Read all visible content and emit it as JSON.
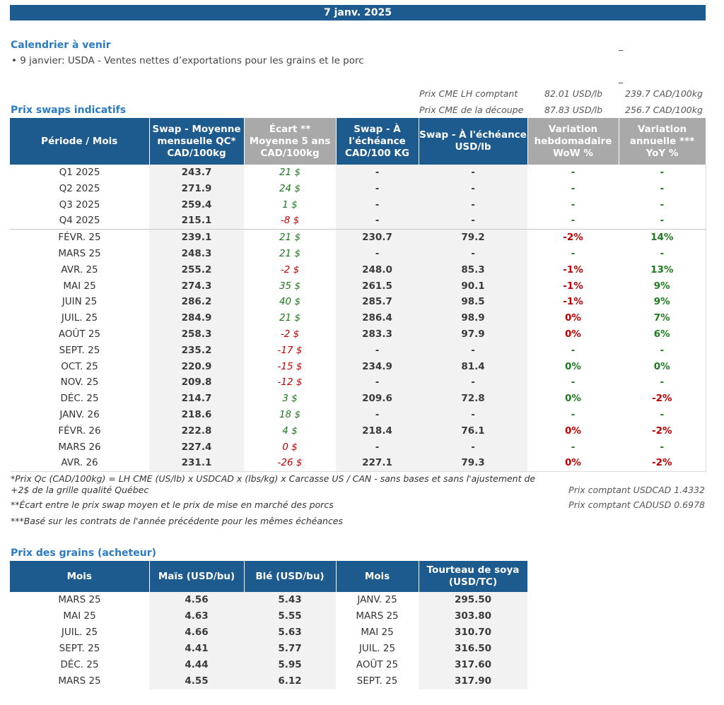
{
  "date": "7 janv. 2025",
  "calendar": {
    "title": "Calendrier à venir",
    "items": [
      "• 9 janvier: USDA - Ventes nettes d’exportations pour les grains et le porc"
    ]
  },
  "cme": {
    "rows": [
      {
        "label": "Prix CME LH comptant",
        "usd": "82.01 USD/lb",
        "cad": "239.7 CAD/100kg"
      },
      {
        "label": "Prix CME de la découpe",
        "usd": "87.83 USD/lb",
        "cad": "256.7 CAD/100kg"
      }
    ]
  },
  "swaps": {
    "title": "Prix swaps indicatifs",
    "headers": [
      "Période / Mois",
      "Swap - Moyenne mensuelle QC* CAD/100kg",
      "Écart ** Moyenne 5 ans CAD/100kg",
      "Swap - À l'échéance CAD/100 KG",
      "Swap - À l'échéance USD/lb",
      "Variation hebdomadaire WoW %",
      "Variation annuelle *** YoY %"
    ],
    "quarters": [
      {
        "period": "Q1 2025",
        "swap": "243.7",
        "ecart": "21 $",
        "ecart_sign": "pos",
        "cad": "-",
        "usd": "-",
        "wow": "-",
        "yoy": "-"
      },
      {
        "period": "Q2 2025",
        "swap": "271.9",
        "ecart": "24 $",
        "ecart_sign": "pos",
        "cad": "-",
        "usd": "-",
        "wow": "-",
        "yoy": "-"
      },
      {
        "period": "Q3 2025",
        "swap": "259.4",
        "ecart": "1 $",
        "ecart_sign": "pos",
        "cad": "-",
        "usd": "-",
        "wow": "-",
        "yoy": "-"
      },
      {
        "period": "Q4 2025",
        "swap": "215.1",
        "ecart": "-8 $",
        "ecart_sign": "neg",
        "cad": "-",
        "usd": "-",
        "wow": "-",
        "yoy": "-"
      }
    ],
    "months": [
      {
        "period": "FÉVR. 25",
        "swap": "239.1",
        "ecart": "21 $",
        "ecart_sign": "pos",
        "cad": "230.7",
        "usd": "79.2",
        "wow": "-2%",
        "wow_sign": "neg",
        "yoy": "14%",
        "yoy_sign": "pos"
      },
      {
        "period": "MARS 25",
        "swap": "248.3",
        "ecart": "21 $",
        "ecart_sign": "pos",
        "cad": "-",
        "usd": "-",
        "wow": "-",
        "wow_sign": "dash",
        "yoy": "-",
        "yoy_sign": "dash"
      },
      {
        "period": "AVR. 25",
        "swap": "255.2",
        "ecart": "-2 $",
        "ecart_sign": "neg",
        "cad": "248.0",
        "usd": "85.3",
        "wow": "-1%",
        "wow_sign": "neg",
        "yoy": "13%",
        "yoy_sign": "pos"
      },
      {
        "period": "MAI 25",
        "swap": "274.3",
        "ecart": "35 $",
        "ecart_sign": "pos",
        "cad": "261.5",
        "usd": "90.1",
        "wow": "-1%",
        "wow_sign": "neg",
        "yoy": "9%",
        "yoy_sign": "pos"
      },
      {
        "period": "JUIN 25",
        "swap": "286.2",
        "ecart": "40 $",
        "ecart_sign": "pos",
        "cad": "285.7",
        "usd": "98.5",
        "wow": "-1%",
        "wow_sign": "neg",
        "yoy": "9%",
        "yoy_sign": "pos"
      },
      {
        "period": "JUIL. 25",
        "swap": "284.9",
        "ecart": "21 $",
        "ecart_sign": "pos",
        "cad": "286.4",
        "usd": "98.9",
        "wow": "0%",
        "wow_sign": "neg",
        "yoy": "7%",
        "yoy_sign": "pos"
      },
      {
        "period": "AOÛT 25",
        "swap": "258.3",
        "ecart": "-2 $",
        "ecart_sign": "neg",
        "cad": "283.3",
        "usd": "97.9",
        "wow": "0%",
        "wow_sign": "neg",
        "yoy": "6%",
        "yoy_sign": "pos"
      },
      {
        "period": "SEPT. 25",
        "swap": "235.2",
        "ecart": "-17 $",
        "ecart_sign": "neg",
        "cad": "-",
        "usd": "-",
        "wow": "-",
        "wow_sign": "dash",
        "yoy": "-",
        "yoy_sign": "dash"
      },
      {
        "period": "OCT. 25",
        "swap": "220.9",
        "ecart": "-15 $",
        "ecart_sign": "neg",
        "cad": "234.9",
        "usd": "81.4",
        "wow": "0%",
        "wow_sign": "pos",
        "yoy": "0%",
        "yoy_sign": "pos"
      },
      {
        "period": "NOV. 25",
        "swap": "209.8",
        "ecart": "-12 $",
        "ecart_sign": "neg",
        "cad": "-",
        "usd": "-",
        "wow": "-",
        "wow_sign": "dash",
        "yoy": "-",
        "yoy_sign": "dash"
      },
      {
        "period": "DÉC. 25",
        "swap": "214.7",
        "ecart": "3 $",
        "ecart_sign": "pos",
        "cad": "209.6",
        "usd": "72.8",
        "wow": "0%",
        "wow_sign": "pos",
        "yoy": "-2%",
        "yoy_sign": "neg"
      },
      {
        "period": "JANV. 26",
        "swap": "218.6",
        "ecart": "18 $",
        "ecart_sign": "pos",
        "cad": "-",
        "usd": "-",
        "wow": "-",
        "wow_sign": "dash",
        "yoy": "-",
        "yoy_sign": "dash"
      },
      {
        "period": "FÉVR. 26",
        "swap": "222.8",
        "ecart": "4 $",
        "ecart_sign": "pos",
        "cad": "218.4",
        "usd": "76.1",
        "wow": "0%",
        "wow_sign": "neg",
        "yoy": "-2%",
        "yoy_sign": "neg"
      },
      {
        "period": "MARS 26",
        "swap": "227.4",
        "ecart": "0 $",
        "ecart_sign": "neg",
        "cad": "-",
        "usd": "-",
        "wow": "-",
        "wow_sign": "dash",
        "yoy": "-",
        "yoy_sign": "dash"
      },
      {
        "period": "AVR. 26",
        "swap": "231.1",
        "ecart": "-26 $",
        "ecart_sign": "neg",
        "cad": "227.1",
        "usd": "79.3",
        "wow": "0%",
        "wow_sign": "neg",
        "yoy": "-2%",
        "yoy_sign": "neg"
      }
    ]
  },
  "footnotes": {
    "note1_line1": "*Prix Qc (CAD/100kg) = LH CME (US/lb) x USDCAD x (lbs/kg) x Carcasse US / CAN - sans bases et sans l'ajustement de",
    "note1_line2": "+2$ de la grille qualité Québec",
    "note2": "**Écart entre le prix swap moyen et le prix de mise en marché des porcs",
    "note3": "***Basé sur les contrats de l'année précédente pour les mêmes échéances",
    "fx1": "Prix comptant USDCAD 1.4332",
    "fx2": "Prix comptant CADUSD 0.6978"
  },
  "grains": {
    "title": "Prix des grains (acheteur)",
    "headers": [
      "Mois",
      "Maïs (USD/bu)",
      "Blé (USD/bu)",
      "Mois",
      "Tourteau de soya (USD/TC)"
    ],
    "rows": [
      {
        "m1": "MARS 25",
        "mais": "4.56",
        "ble": "5.43",
        "m2": "JANV. 25",
        "soya": "295.50"
      },
      {
        "m1": "MAI 25",
        "mais": "4.63",
        "ble": "5.55",
        "m2": "MARS 25",
        "soya": "303.80"
      },
      {
        "m1": "JUIL. 25",
        "mais": "4.66",
        "ble": "5.63",
        "m2": "MAI 25",
        "soya": "310.70"
      },
      {
        "m1": "SEPT. 25",
        "mais": "4.41",
        "ble": "5.77",
        "m2": "JUIL. 25",
        "soya": "316.50"
      },
      {
        "m1": "DÉC. 25",
        "mais": "4.44",
        "ble": "5.95",
        "m2": "AOÛT 25",
        "soya": "317.60"
      },
      {
        "m1": "MARS 25",
        "mais": "4.55",
        "ble": "6.12",
        "m2": "SEPT. 25",
        "soya": "317.90"
      }
    ]
  }
}
